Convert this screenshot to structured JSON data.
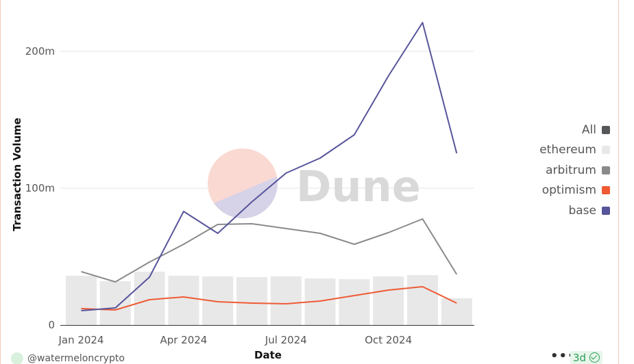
{
  "chart_data": {
    "type": "line",
    "xlabel": "Date",
    "ylabel": "Transaction Volume",
    "x": [
      "2024-01",
      "2024-02",
      "2024-03",
      "2024-04",
      "2024-05",
      "2024-06",
      "2024-07",
      "2024-08",
      "2024-09",
      "2024-10",
      "2024-11",
      "2024-12"
    ],
    "x_tick_labels": [
      "Jan 2024",
      "Apr 2024",
      "Jul 2024",
      "Oct 2024"
    ],
    "x_tick_positions": [
      "2024-01",
      "2024-04",
      "2024-07",
      "2024-10"
    ],
    "y_ticks": [
      0,
      100000000,
      200000000
    ],
    "y_tick_labels": [
      "0",
      "100m",
      "200m"
    ],
    "ylim": [
      0,
      220000000
    ],
    "grid": true,
    "legend_position": "right",
    "series": [
      {
        "name": "ethereum",
        "type": "bar",
        "color": "#e8e8e8",
        "values": [
          36000000,
          32000000,
          39000000,
          36000000,
          35500000,
          35000000,
          35500000,
          34000000,
          33500000,
          35500000,
          36500000,
          19500000
        ]
      },
      {
        "name": "arbitrum",
        "type": "line",
        "color": "#8a8a8a",
        "values": [
          39000000,
          31500000,
          46000000,
          59000000,
          73500000,
          74000000,
          70500000,
          67000000,
          59000000,
          67500000,
          77500000,
          37000000
        ]
      },
      {
        "name": "optimism",
        "type": "line",
        "color": "#ef5a35",
        "values": [
          12000000,
          11000000,
          18500000,
          20500000,
          17000000,
          16000000,
          15500000,
          17500000,
          21500000,
          25500000,
          28000000,
          16000000
        ]
      },
      {
        "name": "base",
        "type": "line",
        "color": "#56549a",
        "values": [
          10500000,
          12500000,
          35000000,
          83000000,
          67000000,
          90000000,
          111000000,
          122000000,
          139000000,
          182000000,
          221000000,
          125500000
        ]
      }
    ]
  },
  "legend": {
    "items": [
      {
        "label": "All",
        "color": "#555759"
      },
      {
        "label": "ethereum",
        "color": "#e8e8e8"
      },
      {
        "label": "arbitrum",
        "color": "#8a8a8a"
      },
      {
        "label": "optimism",
        "color": "#ef5a35"
      },
      {
        "label": "base",
        "color": "#56549a"
      }
    ]
  },
  "watermark": {
    "text": "Dune"
  },
  "footer": {
    "username": "@watermeloncrypto",
    "more_label": "•••",
    "age_label": "3d"
  }
}
